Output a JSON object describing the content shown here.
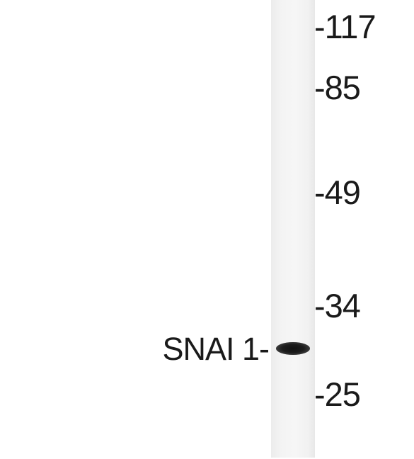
{
  "band_label": "SNAI 1-",
  "markers": [
    {
      "label": "-117"
    },
    {
      "label": "-85"
    },
    {
      "label": "-49"
    },
    {
      "label": "-34"
    },
    {
      "label": "-25"
    }
  ]
}
